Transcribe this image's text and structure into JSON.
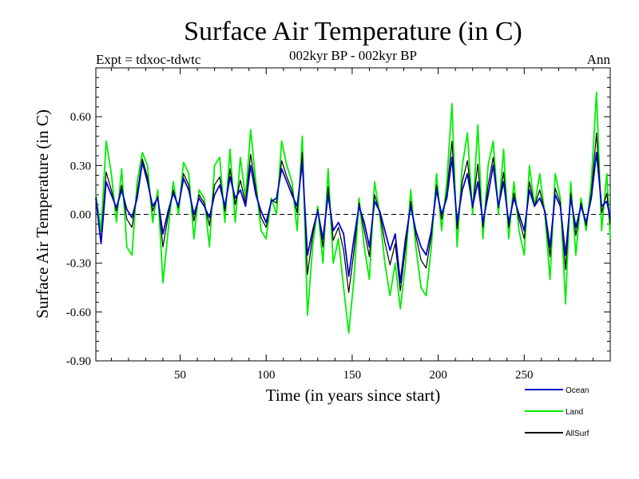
{
  "chart_data": {
    "type": "line",
    "title": "Surface Air Temperature (in C)",
    "subtitle": "002kyr BP - 002kyr BP",
    "left_label": "Expt = tdxoc-tdwtc",
    "right_label": "Ann",
    "xlabel": "Time (in years since start)",
    "ylabel": "Surface Air Temperature (in C)",
    "xlim": [
      1,
      300
    ],
    "ylim": [
      -0.9,
      0.9
    ],
    "x_ticks": [
      50,
      100,
      150,
      200,
      250
    ],
    "x_tick_labels": [
      "50",
      "100",
      "150",
      "200",
      "250"
    ],
    "y_ticks": [
      -0.9,
      -0.6,
      -0.3,
      0.0,
      0.3,
      0.6
    ],
    "y_tick_labels": [
      "-0.90",
      "-0.60",
      "-0.30",
      "0.00",
      "0.30",
      "0.60"
    ],
    "zero_line": true,
    "series": [
      {
        "name": "Ocean",
        "color": "#0000cc",
        "x": [
          1,
          4,
          7,
          10,
          13,
          16,
          19,
          22,
          25,
          28,
          31,
          34,
          37,
          40,
          43,
          46,
          49,
          52,
          55,
          58,
          61,
          64,
          67,
          70,
          73,
          76,
          79,
          82,
          85,
          88,
          91,
          94,
          97,
          100,
          103,
          106,
          109,
          112,
          115,
          118,
          121,
          124,
          127,
          130,
          133,
          136,
          139,
          142,
          145,
          148,
          151,
          154,
          157,
          160,
          163,
          166,
          169,
          172,
          175,
          178,
          181,
          184,
          187,
          190,
          193,
          196,
          199,
          202,
          205,
          208,
          211,
          214,
          217,
          220,
          223,
          226,
          229,
          232,
          235,
          238,
          241,
          244,
          247,
          250,
          253,
          256,
          259,
          262,
          265,
          268,
          271,
          274,
          277,
          280,
          283,
          286,
          289,
          292,
          295,
          298,
          300
        ],
        "values": [
          0.1,
          -0.18,
          0.2,
          0.12,
          0.04,
          0.15,
          0.03,
          -0.02,
          0.1,
          0.32,
          0.2,
          0.05,
          0.1,
          -0.12,
          0.02,
          0.13,
          0.05,
          0.22,
          0.15,
          0.0,
          0.1,
          0.05,
          -0.02,
          0.12,
          0.18,
          0.05,
          0.23,
          0.1,
          0.15,
          0.05,
          0.3,
          0.12,
          0.02,
          -0.05,
          0.08,
          0.1,
          0.28,
          0.2,
          0.12,
          0.05,
          0.32,
          -0.25,
          -0.1,
          0.02,
          -0.15,
          0.12,
          -0.1,
          -0.05,
          -0.12,
          -0.38,
          -0.15,
          0.05,
          -0.05,
          -0.2,
          0.08,
          0.02,
          -0.1,
          -0.22,
          -0.12,
          -0.42,
          -0.15,
          0.05,
          -0.1,
          -0.2,
          -0.25,
          -0.1,
          0.15,
          0.0,
          0.1,
          0.35,
          -0.05,
          0.15,
          0.25,
          0.05,
          0.2,
          -0.05,
          0.12,
          0.3,
          0.05,
          0.2,
          -0.05,
          0.1,
          0.0,
          -0.1,
          0.15,
          0.05,
          0.1,
          0.02,
          -0.2,
          0.12,
          0.05,
          -0.25,
          0.1,
          -0.08,
          0.05,
          -0.05,
          0.1,
          0.38,
          0.05,
          0.08,
          -0.02
        ]
      },
      {
        "name": "Land",
        "color": "#00ee00",
        "x": [
          1,
          4,
          7,
          10,
          13,
          16,
          19,
          22,
          25,
          28,
          31,
          34,
          37,
          40,
          43,
          46,
          49,
          52,
          55,
          58,
          61,
          64,
          67,
          70,
          73,
          76,
          79,
          82,
          85,
          88,
          91,
          94,
          97,
          100,
          103,
          106,
          109,
          112,
          115,
          118,
          121,
          124,
          127,
          130,
          133,
          136,
          139,
          142,
          145,
          148,
          151,
          154,
          157,
          160,
          163,
          166,
          169,
          172,
          175,
          178,
          181,
          184,
          187,
          190,
          193,
          196,
          199,
          202,
          205,
          208,
          211,
          214,
          217,
          220,
          223,
          226,
          229,
          232,
          235,
          238,
          241,
          244,
          247,
          250,
          253,
          256,
          259,
          262,
          265,
          268,
          271,
          274,
          277,
          280,
          283,
          286,
          289,
          292,
          295,
          298,
          300
        ],
        "values": [
          0.12,
          -0.1,
          0.45,
          0.25,
          -0.05,
          0.28,
          -0.2,
          -0.25,
          0.2,
          0.38,
          0.3,
          -0.05,
          0.15,
          -0.42,
          -0.1,
          0.2,
          0.0,
          0.32,
          0.25,
          -0.15,
          0.15,
          0.1,
          -0.2,
          0.3,
          0.35,
          -0.05,
          0.4,
          -0.05,
          0.35,
          0.1,
          0.52,
          0.2,
          -0.1,
          -0.15,
          0.1,
          0.0,
          0.45,
          0.3,
          0.2,
          -0.1,
          0.48,
          -0.62,
          -0.2,
          0.05,
          -0.3,
          0.28,
          -0.3,
          -0.15,
          -0.45,
          -0.73,
          -0.4,
          0.1,
          -0.2,
          -0.4,
          0.2,
          0.0,
          -0.3,
          -0.5,
          -0.3,
          -0.58,
          -0.3,
          0.15,
          -0.2,
          -0.45,
          -0.5,
          -0.2,
          0.25,
          -0.1,
          0.2,
          0.68,
          -0.2,
          0.3,
          0.5,
          0.0,
          0.55,
          -0.15,
          0.3,
          0.45,
          0.0,
          0.4,
          -0.15,
          0.2,
          -0.1,
          -0.25,
          0.3,
          0.05,
          0.25,
          0.0,
          -0.4,
          0.25,
          0.1,
          -0.55,
          0.2,
          -0.25,
          0.1,
          -0.1,
          0.2,
          0.75,
          -0.1,
          0.25,
          -0.15
        ]
      },
      {
        "name": "AllSurf",
        "color": "#000000",
        "x": [
          1,
          4,
          7,
          10,
          13,
          16,
          19,
          22,
          25,
          28,
          31,
          34,
          37,
          40,
          43,
          46,
          49,
          52,
          55,
          58,
          61,
          64,
          67,
          70,
          73,
          76,
          79,
          82,
          85,
          88,
          91,
          94,
          97,
          100,
          103,
          106,
          109,
          112,
          115,
          118,
          121,
          124,
          127,
          130,
          133,
          136,
          139,
          142,
          145,
          148,
          151,
          154,
          157,
          160,
          163,
          166,
          169,
          172,
          175,
          178,
          181,
          184,
          187,
          190,
          193,
          196,
          199,
          202,
          205,
          208,
          211,
          214,
          217,
          220,
          223,
          226,
          229,
          232,
          235,
          238,
          241,
          244,
          247,
          250,
          253,
          256,
          259,
          262,
          265,
          268,
          271,
          274,
          277,
          280,
          283,
          286,
          289,
          292,
          295,
          298,
          300
        ],
        "values": [
          0.11,
          -0.16,
          0.26,
          0.15,
          0.02,
          0.18,
          -0.03,
          -0.08,
          0.13,
          0.34,
          0.23,
          0.02,
          0.11,
          -0.2,
          -0.01,
          0.15,
          0.04,
          0.25,
          0.18,
          -0.04,
          0.12,
          0.07,
          -0.07,
          0.18,
          0.23,
          0.02,
          0.28,
          0.06,
          0.21,
          0.07,
          0.37,
          0.15,
          -0.02,
          -0.08,
          0.09,
          0.07,
          0.33,
          0.23,
          0.15,
          0.01,
          0.38,
          -0.37,
          -0.13,
          0.03,
          -0.2,
          0.17,
          -0.16,
          -0.08,
          -0.22,
          -0.48,
          -0.23,
          0.07,
          -0.1,
          -0.26,
          0.12,
          0.01,
          -0.17,
          -0.31,
          -0.18,
          -0.47,
          -0.2,
          0.08,
          -0.13,
          -0.28,
          -0.33,
          -0.13,
          0.18,
          -0.03,
          0.13,
          0.45,
          -0.09,
          0.2,
          0.33,
          0.04,
          0.31,
          -0.08,
          0.18,
          0.35,
          0.04,
          0.26,
          -0.08,
          0.13,
          -0.03,
          -0.15,
          0.2,
          0.05,
          0.15,
          0.01,
          -0.26,
          0.16,
          0.07,
          -0.34,
          0.13,
          -0.13,
          0.07,
          -0.07,
          0.13,
          0.5,
          0.01,
          0.13,
          -0.06
        ]
      }
    ]
  }
}
